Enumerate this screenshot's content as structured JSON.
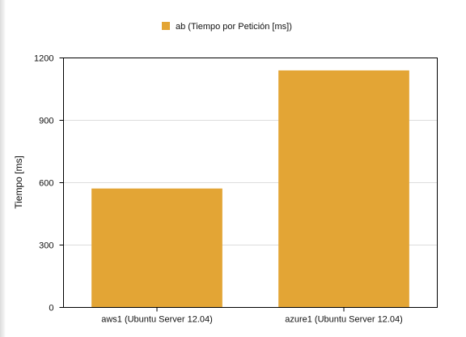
{
  "chart_data": {
    "type": "bar",
    "categories": [
      "aws1 (Ubuntu Server 12.04)",
      "azure1 (Ubuntu Server 12.04)"
    ],
    "series": [
      {
        "name": "ab (Tiempo por Petición [ms])",
        "values": [
          572,
          1140
        ],
        "color": "#e3a535"
      }
    ],
    "xlabel": "",
    "ylabel": "Tiempo [ms]",
    "ylim": [
      0,
      1200
    ],
    "yticks": [
      0,
      300,
      600,
      900,
      1200
    ],
    "grid": true,
    "legend": "top-center"
  }
}
